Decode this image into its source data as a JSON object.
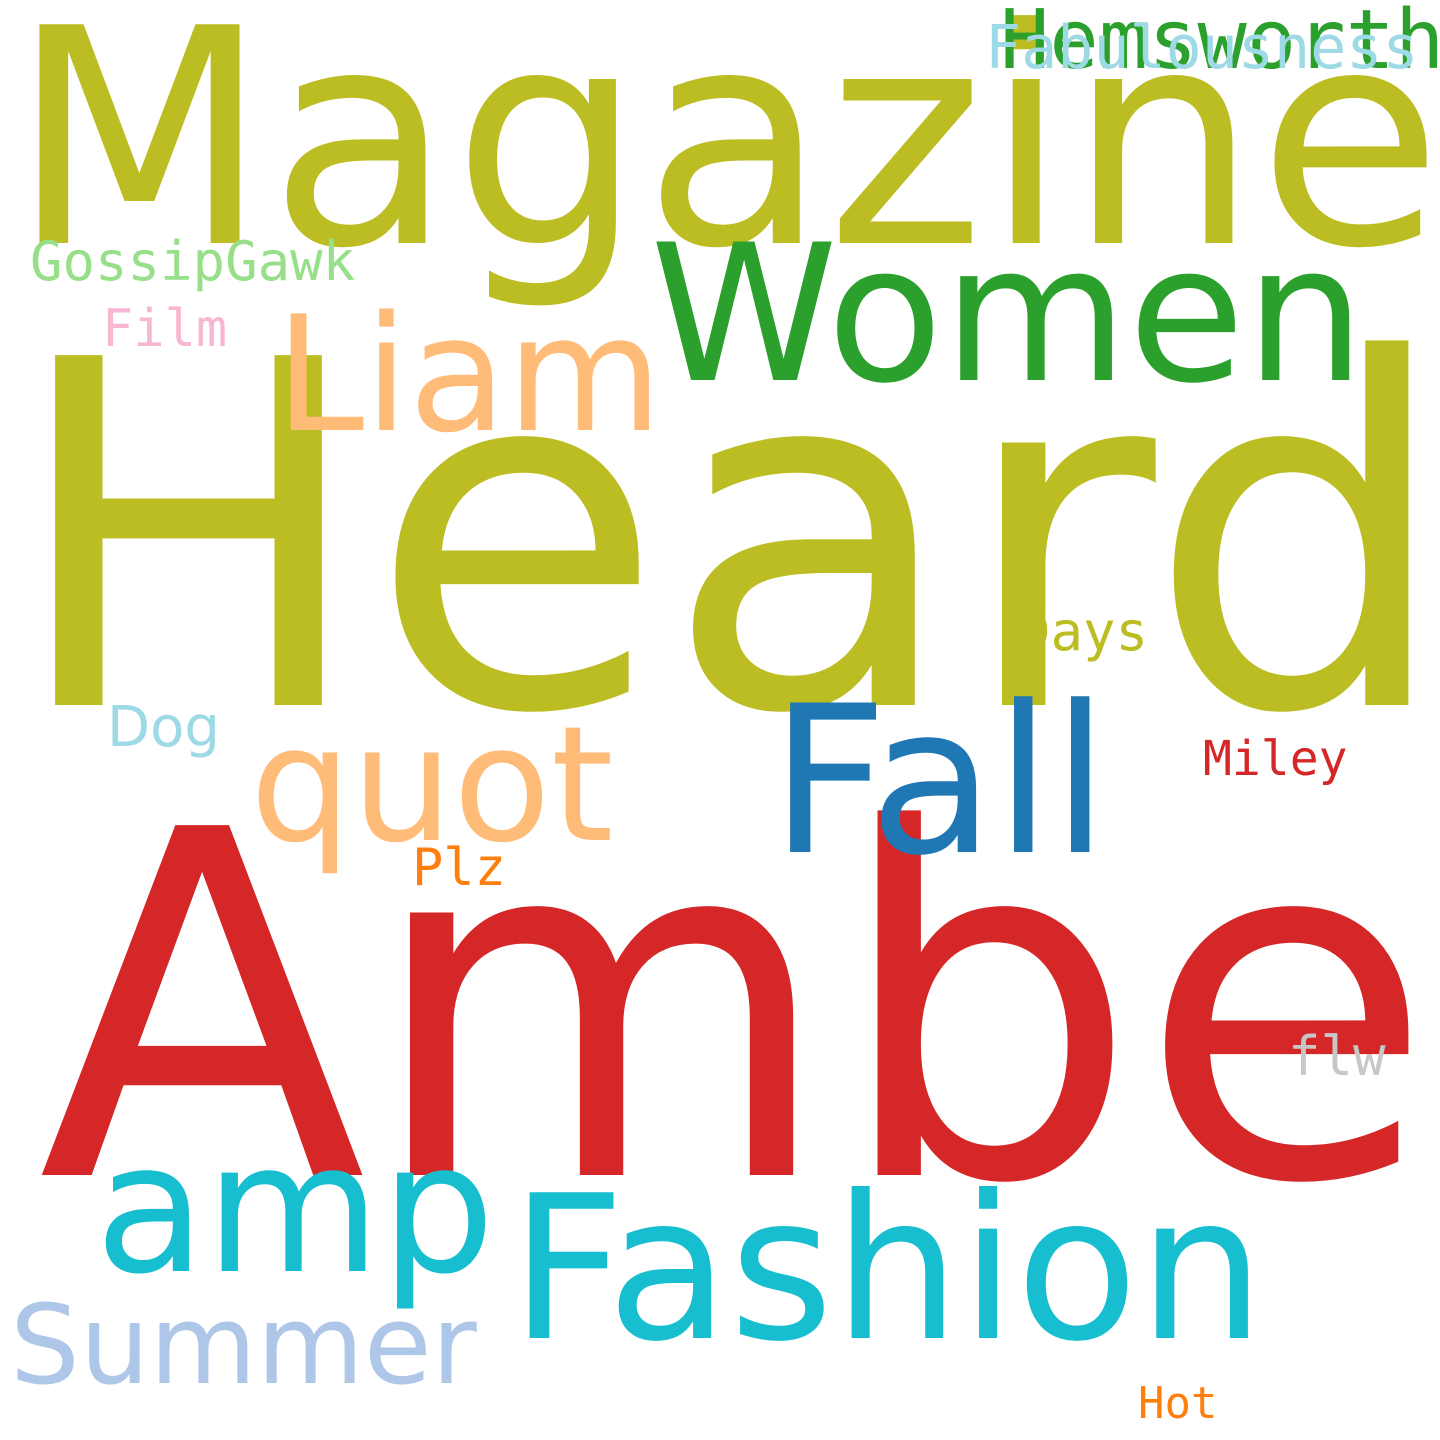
{
  "words": [
    {
      "id": "heard",
      "text": "Heard",
      "color": "#bcbd22"
    },
    {
      "id": "amber",
      "text": "Amber",
      "color": "#d62728"
    },
    {
      "id": "magazine",
      "text": "Magazine",
      "color": "#bcbd22"
    },
    {
      "id": "women",
      "text": "Women",
      "color": "#2ca02c"
    },
    {
      "id": "fashion",
      "text": "Fashion",
      "color": "#17becf"
    },
    {
      "id": "amp",
      "text": "amp",
      "color": "#17becf"
    },
    {
      "id": "fall",
      "text": "Fall",
      "color": "#1f77b4"
    },
    {
      "id": "liam",
      "text": "Liam",
      "color": "#ffbb78"
    },
    {
      "id": "quot",
      "text": "quot",
      "color": "#ffbb78"
    },
    {
      "id": "summer",
      "text": "Summer",
      "color": "#aec7e8"
    },
    {
      "id": "hemsworth",
      "text": "Hemsworth",
      "color": "#2ca02c"
    },
    {
      "id": "fabulousness",
      "text": "Fabulousness",
      "color": "#9edae5"
    },
    {
      "id": "gossipgawk",
      "text": "GossipGawk",
      "color": "#98df8a"
    },
    {
      "id": "film",
      "text": "Film",
      "color": "#f7b6d2"
    },
    {
      "id": "days",
      "text": "Days",
      "color": "#bcbd22"
    },
    {
      "id": "dog",
      "text": "Dog",
      "color": "#9edae5"
    },
    {
      "id": "miley",
      "text": "Miley",
      "color": "#d62728"
    },
    {
      "id": "plz",
      "text": "Plz",
      "color": "#ff7f0e"
    },
    {
      "id": "flw",
      "text": "flw",
      "color": "#c7c7c7"
    },
    {
      "id": "hot",
      "text": "Hot",
      "color": "#ff7f0e"
    }
  ]
}
